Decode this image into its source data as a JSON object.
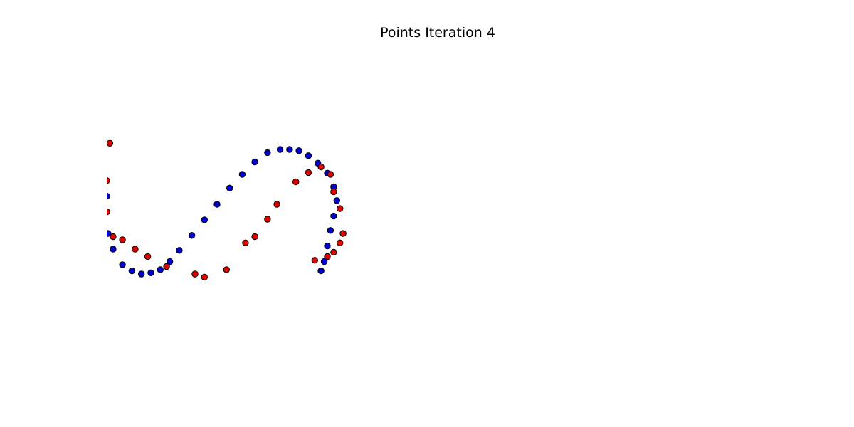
{
  "chart_data": {
    "type": "scatter",
    "title": "Points Iteration 4",
    "xlabel": "",
    "ylabel": "",
    "axes_visible": false,
    "grid": false,
    "xlim": [
      0,
      10.5
    ],
    "ylim": [
      -2.6,
      2.6
    ],
    "series": [
      {
        "color": "#0000cc",
        "points": [
          [
            0.0,
            0.25
          ],
          [
            0.0,
            0.0
          ],
          [
            0.02,
            -0.35
          ],
          [
            0.1,
            -0.6
          ],
          [
            0.25,
            -0.85
          ],
          [
            0.4,
            -0.95
          ],
          [
            0.55,
            -1.0
          ],
          [
            0.7,
            -0.98
          ],
          [
            0.85,
            -0.93
          ],
          [
            1.0,
            -0.8
          ],
          [
            1.15,
            -0.62
          ],
          [
            1.35,
            -0.38
          ],
          [
            1.55,
            -0.13
          ],
          [
            1.75,
            0.12
          ],
          [
            1.95,
            0.38
          ],
          [
            2.15,
            0.6
          ],
          [
            2.35,
            0.8
          ],
          [
            2.55,
            0.95
          ],
          [
            2.75,
            1.0
          ],
          [
            2.9,
            1.0
          ],
          [
            3.05,
            0.98
          ],
          [
            3.2,
            0.9
          ],
          [
            3.35,
            0.78
          ],
          [
            3.5,
            0.62
          ],
          [
            3.6,
            0.4
          ],
          [
            3.65,
            0.18
          ],
          [
            3.6,
            -0.07
          ],
          [
            3.55,
            -0.3
          ],
          [
            3.5,
            -0.55
          ],
          [
            3.45,
            -0.8
          ],
          [
            3.4,
            -0.95
          ]
        ]
      },
      {
        "color": "#dd0000",
        "points": [
          [
            0.05,
            1.1
          ],
          [
            0.0,
            0.5
          ],
          [
            0.0,
            0.0
          ],
          [
            0.1,
            -0.4
          ],
          [
            0.25,
            -0.45
          ],
          [
            0.45,
            -0.6
          ],
          [
            0.65,
            -0.72
          ],
          [
            0.95,
            -0.88
          ],
          [
            1.4,
            -1.0
          ],
          [
            1.55,
            -1.05
          ],
          [
            1.9,
            -0.93
          ],
          [
            2.2,
            -0.5
          ],
          [
            2.35,
            -0.4
          ],
          [
            2.55,
            -0.12
          ],
          [
            2.7,
            0.12
          ],
          [
            3.0,
            0.48
          ],
          [
            3.2,
            0.63
          ],
          [
            3.4,
            0.72
          ],
          [
            3.55,
            0.6
          ],
          [
            3.6,
            0.32
          ],
          [
            3.7,
            0.05
          ],
          [
            3.75,
            -0.35
          ],
          [
            3.7,
            -0.5
          ],
          [
            3.6,
            -0.65
          ],
          [
            3.5,
            -0.72
          ],
          [
            3.3,
            -0.78
          ]
        ]
      }
    ]
  }
}
